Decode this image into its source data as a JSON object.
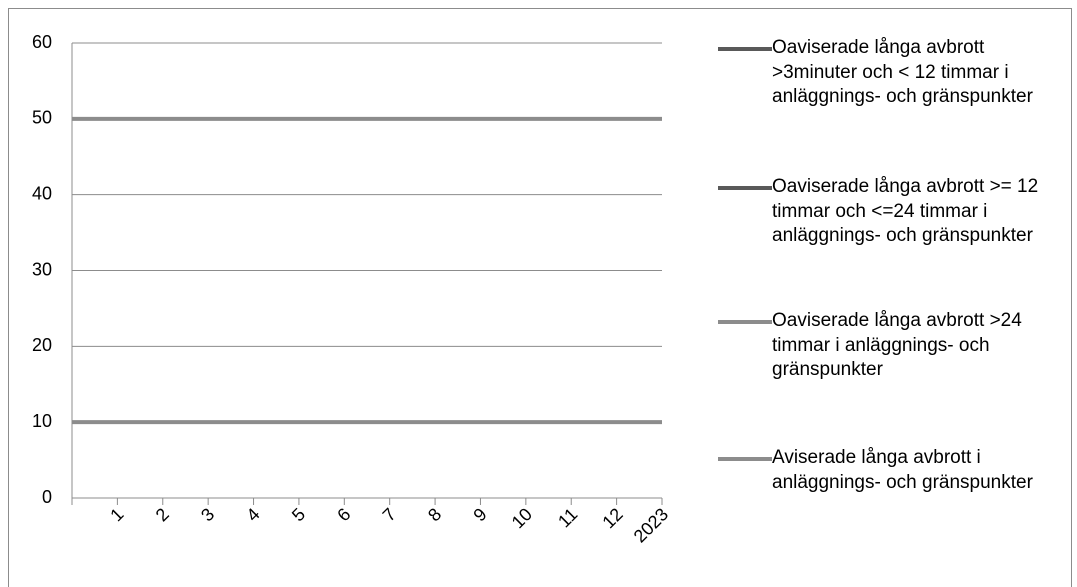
{
  "chart_data": {
    "type": "line",
    "categories": [
      null,
      "1",
      "2",
      "3",
      "4",
      "5",
      "6",
      "7",
      "8",
      "9",
      "10",
      "11",
      "12",
      "2023"
    ],
    "series": [
      {
        "name": "Oaviserade långa avbrott >3minuter och < 12 timmar i anläggnings- och gränspunkter",
        "color": "#595959",
        "values": [
          null,
          null,
          null,
          null,
          null,
          null,
          null,
          null,
          null,
          null,
          null,
          null,
          null,
          null
        ]
      },
      {
        "name": "Oaviserade långa avbrott >= 12 timmar och <=24 timmar i anläggnings- och gränspunkter",
        "color": "#595959",
        "values": [
          null,
          null,
          null,
          null,
          null,
          null,
          null,
          null,
          null,
          null,
          null,
          null,
          null,
          null
        ]
      },
      {
        "name": "Oaviserade långa avbrott >24 timmar i anläggnings- och gränspunkter",
        "color": "#8c8c8c",
        "values": [
          50,
          50,
          50,
          50,
          50,
          50,
          50,
          50,
          50,
          50,
          50,
          50,
          50,
          50
        ]
      },
      {
        "name": "Aviserade långa avbrott i anläggnings- och gränspunkter",
        "color": "#8c8c8c",
        "values": [
          10,
          10,
          10,
          10,
          10,
          10,
          10,
          10,
          10,
          10,
          10,
          10,
          10,
          10
        ]
      }
    ],
    "ylim": [
      0,
      60
    ],
    "yticks": [
      0,
      10,
      20,
      30,
      40,
      50,
      60
    ],
    "grid": true,
    "legend": "right"
  }
}
